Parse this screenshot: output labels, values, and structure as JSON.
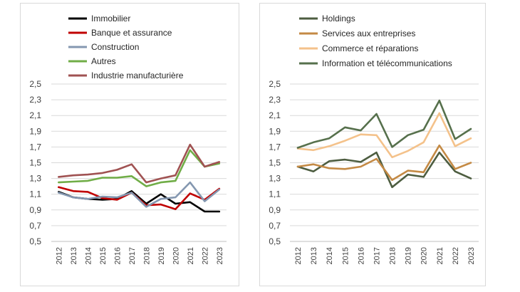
{
  "chart_data": [
    {
      "type": "line",
      "x": [
        "2012",
        "2013",
        "2014",
        "2015",
        "2016",
        "2017",
        "2018",
        "2019",
        "2020",
        "2021",
        "2022",
        "2023"
      ],
      "ylim": [
        0.5,
        2.5
      ],
      "yticks": [
        "0,5",
        "0,7",
        "0,9",
        "1,1",
        "1,3",
        "1,5",
        "1,7",
        "1,9",
        "2,1",
        "2,3",
        "2,5"
      ],
      "grid": true,
      "legend": "top",
      "series": [
        {
          "name": "Immobilier",
          "color": "#000000",
          "values": [
            1.13,
            1.06,
            1.04,
            1.03,
            1.04,
            1.14,
            0.98,
            1.1,
            0.98,
            1.0,
            0.88,
            0.88
          ]
        },
        {
          "name": "Banque et assurance",
          "color": "#c00000",
          "values": [
            1.19,
            1.14,
            1.13,
            1.05,
            1.03,
            1.12,
            0.96,
            0.97,
            0.91,
            1.11,
            1.03,
            1.17
          ]
        },
        {
          "name": "Construction",
          "color": "#8497b0",
          "values": [
            1.12,
            1.06,
            1.04,
            1.07,
            1.06,
            1.12,
            0.94,
            1.04,
            1.06,
            1.25,
            1.01,
            1.16
          ]
        },
        {
          "name": "Autres",
          "color": "#70ad47",
          "values": [
            1.25,
            1.26,
            1.27,
            1.31,
            1.31,
            1.33,
            1.2,
            1.25,
            1.27,
            1.66,
            1.45,
            1.49
          ]
        },
        {
          "name": "Industrie manufacturière",
          "color": "#a05252",
          "values": [
            1.32,
            1.34,
            1.35,
            1.37,
            1.41,
            1.48,
            1.25,
            1.3,
            1.34,
            1.73,
            1.45,
            1.51
          ]
        }
      ]
    },
    {
      "type": "line",
      "x": [
        "2012",
        "2013",
        "2014",
        "2015",
        "2016",
        "2017",
        "2018",
        "2019",
        "2020",
        "2021",
        "2022",
        "2023"
      ],
      "ylim": [
        0.5,
        2.5
      ],
      "yticks": [
        "0,5",
        "0,7",
        "0,9",
        "1,1",
        "1,3",
        "1,5",
        "1,7",
        "1,9",
        "2,1",
        "2,3",
        "2,5"
      ],
      "grid": true,
      "legend": "top",
      "series": [
        {
          "name": "Holdings",
          "color": "#4d5d40",
          "values": [
            1.45,
            1.39,
            1.52,
            1.54,
            1.51,
            1.63,
            1.19,
            1.35,
            1.32,
            1.63,
            1.39,
            1.3
          ]
        },
        {
          "name": "Services aux entreprises",
          "color": "#c48a45",
          "values": [
            1.45,
            1.48,
            1.43,
            1.42,
            1.45,
            1.55,
            1.28,
            1.4,
            1.38,
            1.72,
            1.42,
            1.5
          ]
        },
        {
          "name": "Commerce et réparations",
          "color": "#f4c28b",
          "values": [
            1.68,
            1.66,
            1.71,
            1.78,
            1.86,
            1.85,
            1.57,
            1.65,
            1.76,
            2.13,
            1.71,
            1.81
          ]
        },
        {
          "name": "Information et télécommunications",
          "color": "#56704c",
          "values": [
            1.69,
            1.76,
            1.81,
            1.95,
            1.91,
            2.12,
            1.7,
            1.85,
            1.92,
            2.29,
            1.8,
            1.93
          ]
        }
      ]
    }
  ]
}
